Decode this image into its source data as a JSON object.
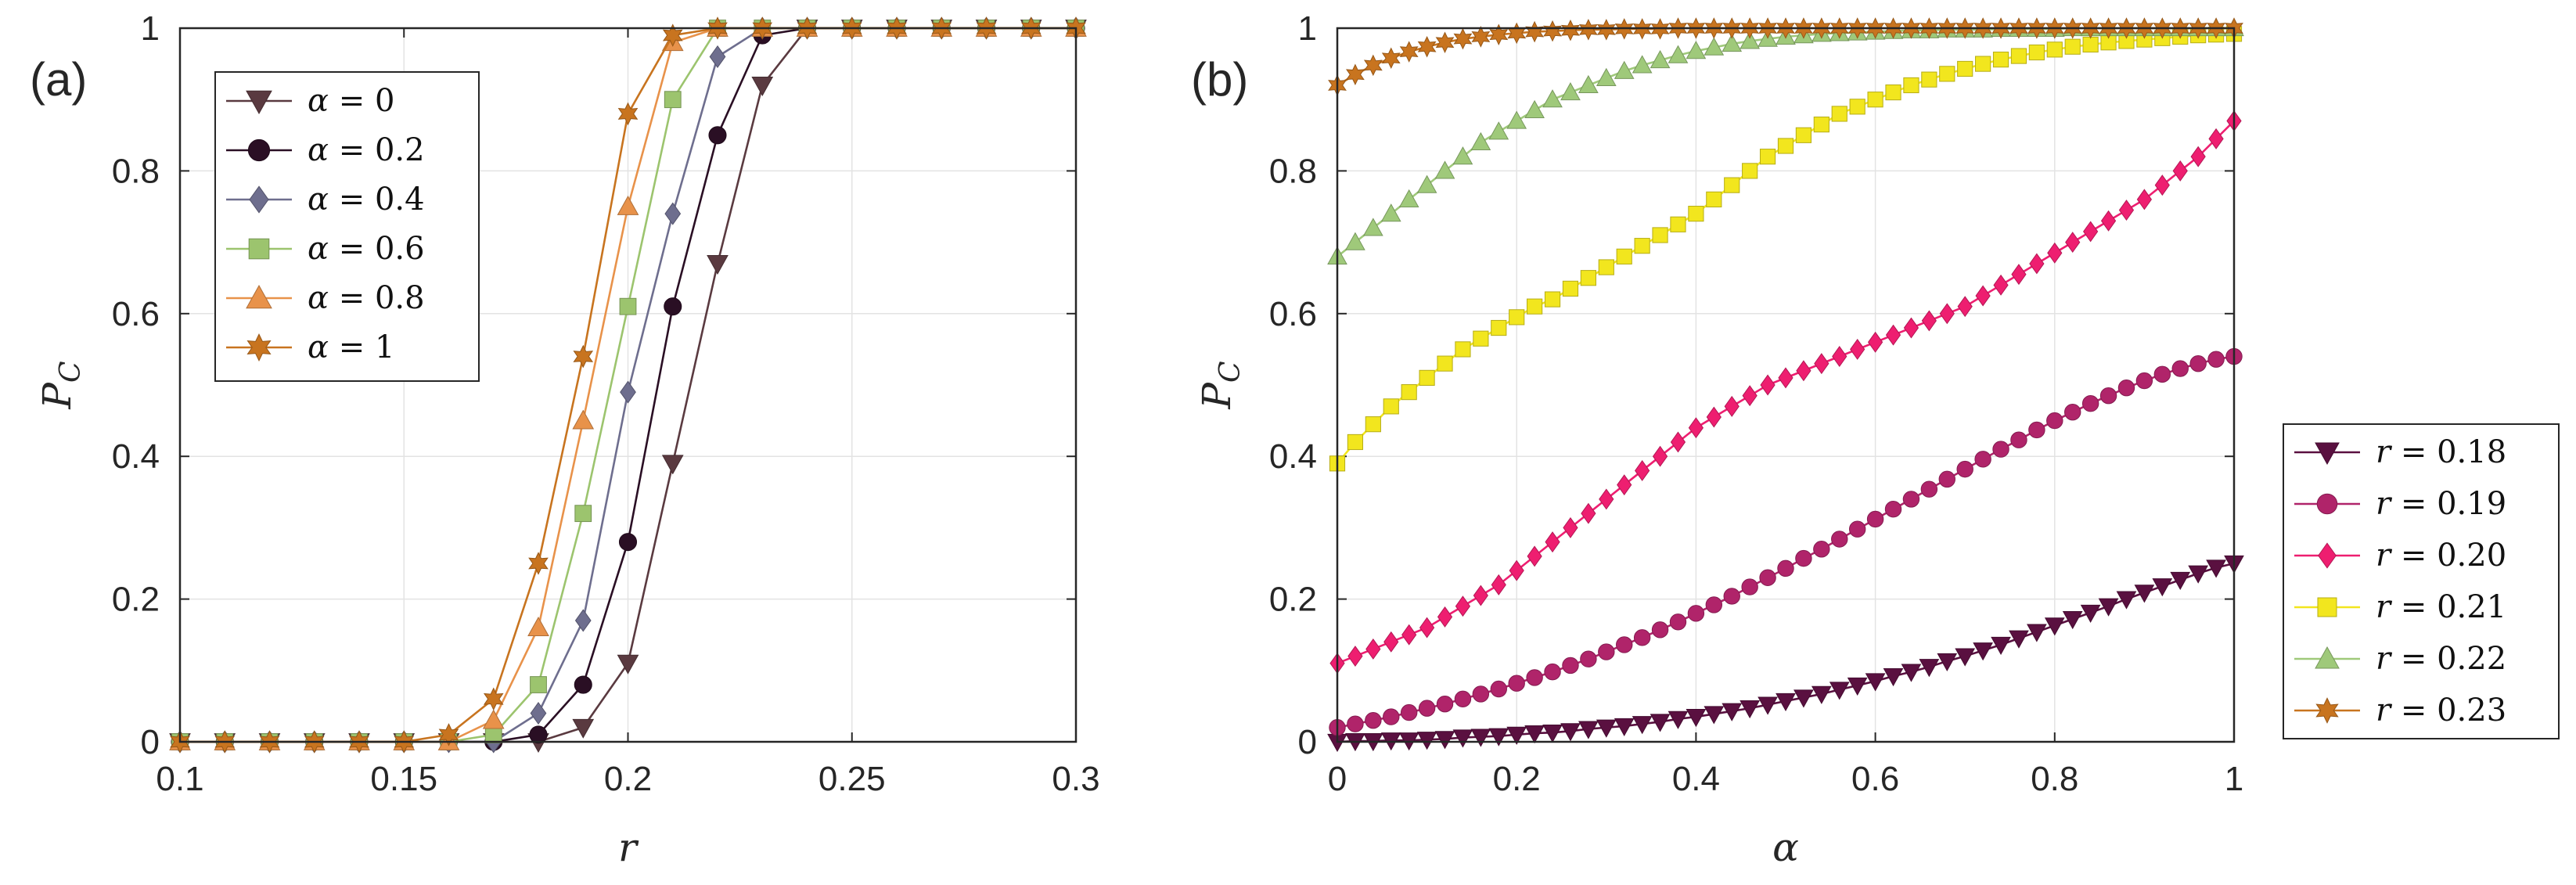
{
  "chart_data": [
    {
      "type": "line",
      "panel_label": "(a)",
      "xlabel": "r",
      "ylabel": "P",
      "ylabel_sub": "C",
      "xlim": [
        0.1,
        0.3
      ],
      "ylim": [
        0,
        1
      ],
      "x_ticks": [
        "0.1",
        "0.15",
        "0.2",
        "0.25",
        "0.3"
      ],
      "y_ticks": [
        "0",
        "0.2",
        "0.4",
        "0.6",
        "0.8",
        "1"
      ],
      "grid": true,
      "legend_position": "top-left",
      "x": [
        0.1,
        0.11,
        0.12,
        0.13,
        0.14,
        0.15,
        0.16,
        0.17,
        0.18,
        0.19,
        0.2,
        0.21,
        0.22,
        0.23,
        0.24,
        0.25,
        0.26,
        0.27,
        0.28,
        0.29,
        0.3
      ],
      "series": [
        {
          "name_var": "α",
          "name_op": "=",
          "name_val": "0",
          "marker": "triangle-down",
          "color": "#5a3a40",
          "values": [
            0,
            0,
            0,
            0,
            0,
            0,
            0,
            0,
            0,
            0.02,
            0.11,
            0.39,
            0.67,
            0.92,
            1,
            1,
            1,
            1,
            1,
            1,
            1
          ]
        },
        {
          "name_var": "α",
          "name_op": "=",
          "name_val": "0.2",
          "marker": "circle",
          "color": "#2a0f24",
          "values": [
            0,
            0,
            0,
            0,
            0,
            0,
            0,
            0,
            0.01,
            0.08,
            0.28,
            0.61,
            0.85,
            0.99,
            1,
            1,
            1,
            1,
            1,
            1,
            1
          ]
        },
        {
          "name_var": "α",
          "name_op": "=",
          "name_val": "0.4",
          "marker": "diamond",
          "color": "#6e6e8e",
          "values": [
            0,
            0,
            0,
            0,
            0,
            0,
            0,
            0,
            0.04,
            0.17,
            0.49,
            0.74,
            0.96,
            1,
            1,
            1,
            1,
            1,
            1,
            1,
            1
          ]
        },
        {
          "name_var": "α",
          "name_op": "=",
          "name_val": "0.6",
          "marker": "square",
          "color": "#9cc46e",
          "values": [
            0,
            0,
            0,
            0,
            0,
            0,
            0,
            0.01,
            0.08,
            0.32,
            0.61,
            0.9,
            1,
            1,
            1,
            1,
            1,
            1,
            1,
            1,
            1
          ]
        },
        {
          "name_var": "α",
          "name_op": "=",
          "name_val": "0.8",
          "marker": "triangle-up",
          "color": "#e8924a",
          "values": [
            0,
            0,
            0,
            0,
            0,
            0,
            0,
            0.03,
            0.16,
            0.45,
            0.75,
            0.98,
            1,
            1,
            1,
            1,
            1,
            1,
            1,
            1,
            1
          ]
        },
        {
          "name_var": "α",
          "name_op": "=",
          "name_val": "1",
          "marker": "hexagram",
          "color": "#c8741f",
          "values": [
            0,
            0,
            0,
            0,
            0,
            0,
            0.01,
            0.06,
            0.25,
            0.54,
            0.88,
            0.99,
            1,
            1,
            1,
            1,
            1,
            1,
            1,
            1,
            1
          ]
        }
      ]
    },
    {
      "type": "line",
      "panel_label": "(b)",
      "xlabel": "α",
      "ylabel": "P",
      "ylabel_sub": "C",
      "xlim": [
        0,
        1
      ],
      "ylim": [
        0,
        1
      ],
      "x_ticks": [
        "0",
        "0.2",
        "0.4",
        "0.6",
        "0.8",
        "1"
      ],
      "y_ticks": [
        "0",
        "0.2",
        "0.4",
        "0.6",
        "0.8",
        "1"
      ],
      "grid": true,
      "legend_position": "right-outside",
      "x": [
        0,
        0.02,
        0.04,
        0.06,
        0.08,
        0.1,
        0.12,
        0.14,
        0.16,
        0.18,
        0.2,
        0.22,
        0.24,
        0.26,
        0.28,
        0.3,
        0.32,
        0.34,
        0.36,
        0.38,
        0.4,
        0.42,
        0.44,
        0.46,
        0.48,
        0.5,
        0.52,
        0.54,
        0.56,
        0.58,
        0.6,
        0.62,
        0.64,
        0.66,
        0.68,
        0.7,
        0.72,
        0.74,
        0.76,
        0.78,
        0.8,
        0.82,
        0.84,
        0.86,
        0.88,
        0.9,
        0.92,
        0.94,
        0.96,
        0.98,
        1.0
      ],
      "series": [
        {
          "name_var": "r",
          "name_op": "=",
          "name_val": "0.18",
          "marker": "triangle-down",
          "color": "#5a1040",
          "values": [
            0.0,
            0.001,
            0.001,
            0.002,
            0.002,
            0.003,
            0.004,
            0.006,
            0.007,
            0.008,
            0.01,
            0.012,
            0.013,
            0.015,
            0.018,
            0.02,
            0.022,
            0.025,
            0.028,
            0.032,
            0.035,
            0.039,
            0.043,
            0.047,
            0.052,
            0.057,
            0.062,
            0.067,
            0.073,
            0.079,
            0.085,
            0.092,
            0.098,
            0.105,
            0.113,
            0.12,
            0.128,
            0.136,
            0.145,
            0.154,
            0.163,
            0.172,
            0.181,
            0.19,
            0.2,
            0.209,
            0.218,
            0.227,
            0.236,
            0.244,
            0.25
          ]
        },
        {
          "name_var": "r",
          "name_op": "=",
          "name_val": "0.19",
          "marker": "circle",
          "color": "#b0246a",
          "values": [
            0.02,
            0.025,
            0.03,
            0.035,
            0.041,
            0.047,
            0.053,
            0.06,
            0.067,
            0.074,
            0.082,
            0.09,
            0.098,
            0.107,
            0.116,
            0.126,
            0.136,
            0.146,
            0.157,
            0.168,
            0.18,
            0.192,
            0.204,
            0.217,
            0.23,
            0.243,
            0.257,
            0.27,
            0.284,
            0.298,
            0.312,
            0.326,
            0.34,
            0.354,
            0.368,
            0.382,
            0.396,
            0.41,
            0.423,
            0.437,
            0.45,
            0.462,
            0.474,
            0.485,
            0.496,
            0.506,
            0.515,
            0.523,
            0.53,
            0.536,
            0.54
          ]
        },
        {
          "name_var": "r",
          "name_op": "=",
          "name_val": "0.20",
          "marker": "diamond",
          "color": "#ee1e70",
          "values": [
            0.11,
            0.12,
            0.13,
            0.14,
            0.15,
            0.16,
            0.175,
            0.19,
            0.205,
            0.22,
            0.24,
            0.26,
            0.28,
            0.3,
            0.32,
            0.34,
            0.36,
            0.38,
            0.4,
            0.42,
            0.44,
            0.455,
            0.47,
            0.485,
            0.5,
            0.51,
            0.52,
            0.53,
            0.54,
            0.55,
            0.56,
            0.57,
            0.58,
            0.59,
            0.6,
            0.61,
            0.625,
            0.64,
            0.655,
            0.67,
            0.685,
            0.7,
            0.715,
            0.73,
            0.745,
            0.76,
            0.78,
            0.8,
            0.82,
            0.845,
            0.87
          ]
        },
        {
          "name_var": "r",
          "name_op": "=",
          "name_val": "0.21",
          "marker": "square",
          "color": "#f2e61e",
          "values": [
            0.39,
            0.42,
            0.445,
            0.47,
            0.49,
            0.51,
            0.53,
            0.55,
            0.565,
            0.58,
            0.595,
            0.61,
            0.62,
            0.635,
            0.65,
            0.665,
            0.68,
            0.695,
            0.71,
            0.725,
            0.74,
            0.76,
            0.78,
            0.8,
            0.82,
            0.835,
            0.85,
            0.865,
            0.88,
            0.89,
            0.9,
            0.91,
            0.92,
            0.928,
            0.936,
            0.943,
            0.95,
            0.956,
            0.961,
            0.966,
            0.97,
            0.974,
            0.977,
            0.98,
            0.982,
            0.984,
            0.986,
            0.988,
            0.99,
            0.991,
            0.992
          ]
        },
        {
          "name_var": "r",
          "name_op": "=",
          "name_val": "0.22",
          "marker": "triangle-up",
          "color": "#9fc97a",
          "values": [
            0.68,
            0.7,
            0.72,
            0.74,
            0.76,
            0.78,
            0.8,
            0.82,
            0.84,
            0.855,
            0.87,
            0.885,
            0.9,
            0.91,
            0.92,
            0.93,
            0.94,
            0.948,
            0.955,
            0.962,
            0.968,
            0.973,
            0.978,
            0.982,
            0.985,
            0.988,
            0.99,
            0.992,
            0.993,
            0.994,
            0.995,
            0.996,
            0.997,
            0.997,
            0.998,
            0.998,
            0.998,
            0.999,
            0.999,
            0.999,
            0.999,
            1,
            1,
            1,
            1,
            1,
            1,
            1,
            1,
            1,
            1
          ]
        },
        {
          "name_var": "r",
          "name_op": "=",
          "name_val": "0.23",
          "marker": "hexagram",
          "color": "#c8741f",
          "values": [
            0.92,
            0.935,
            0.948,
            0.958,
            0.967,
            0.974,
            0.98,
            0.985,
            0.988,
            0.991,
            0.993,
            0.995,
            0.996,
            0.997,
            0.998,
            0.998,
            0.999,
            0.999,
            0.999,
            1,
            1,
            1,
            1,
            1,
            1,
            1,
            1,
            1,
            1,
            1,
            1,
            1,
            1,
            1,
            1,
            1,
            1,
            1,
            1,
            1,
            1,
            1,
            1,
            1,
            1,
            1,
            1,
            1,
            1,
            1,
            1
          ]
        }
      ]
    }
  ]
}
